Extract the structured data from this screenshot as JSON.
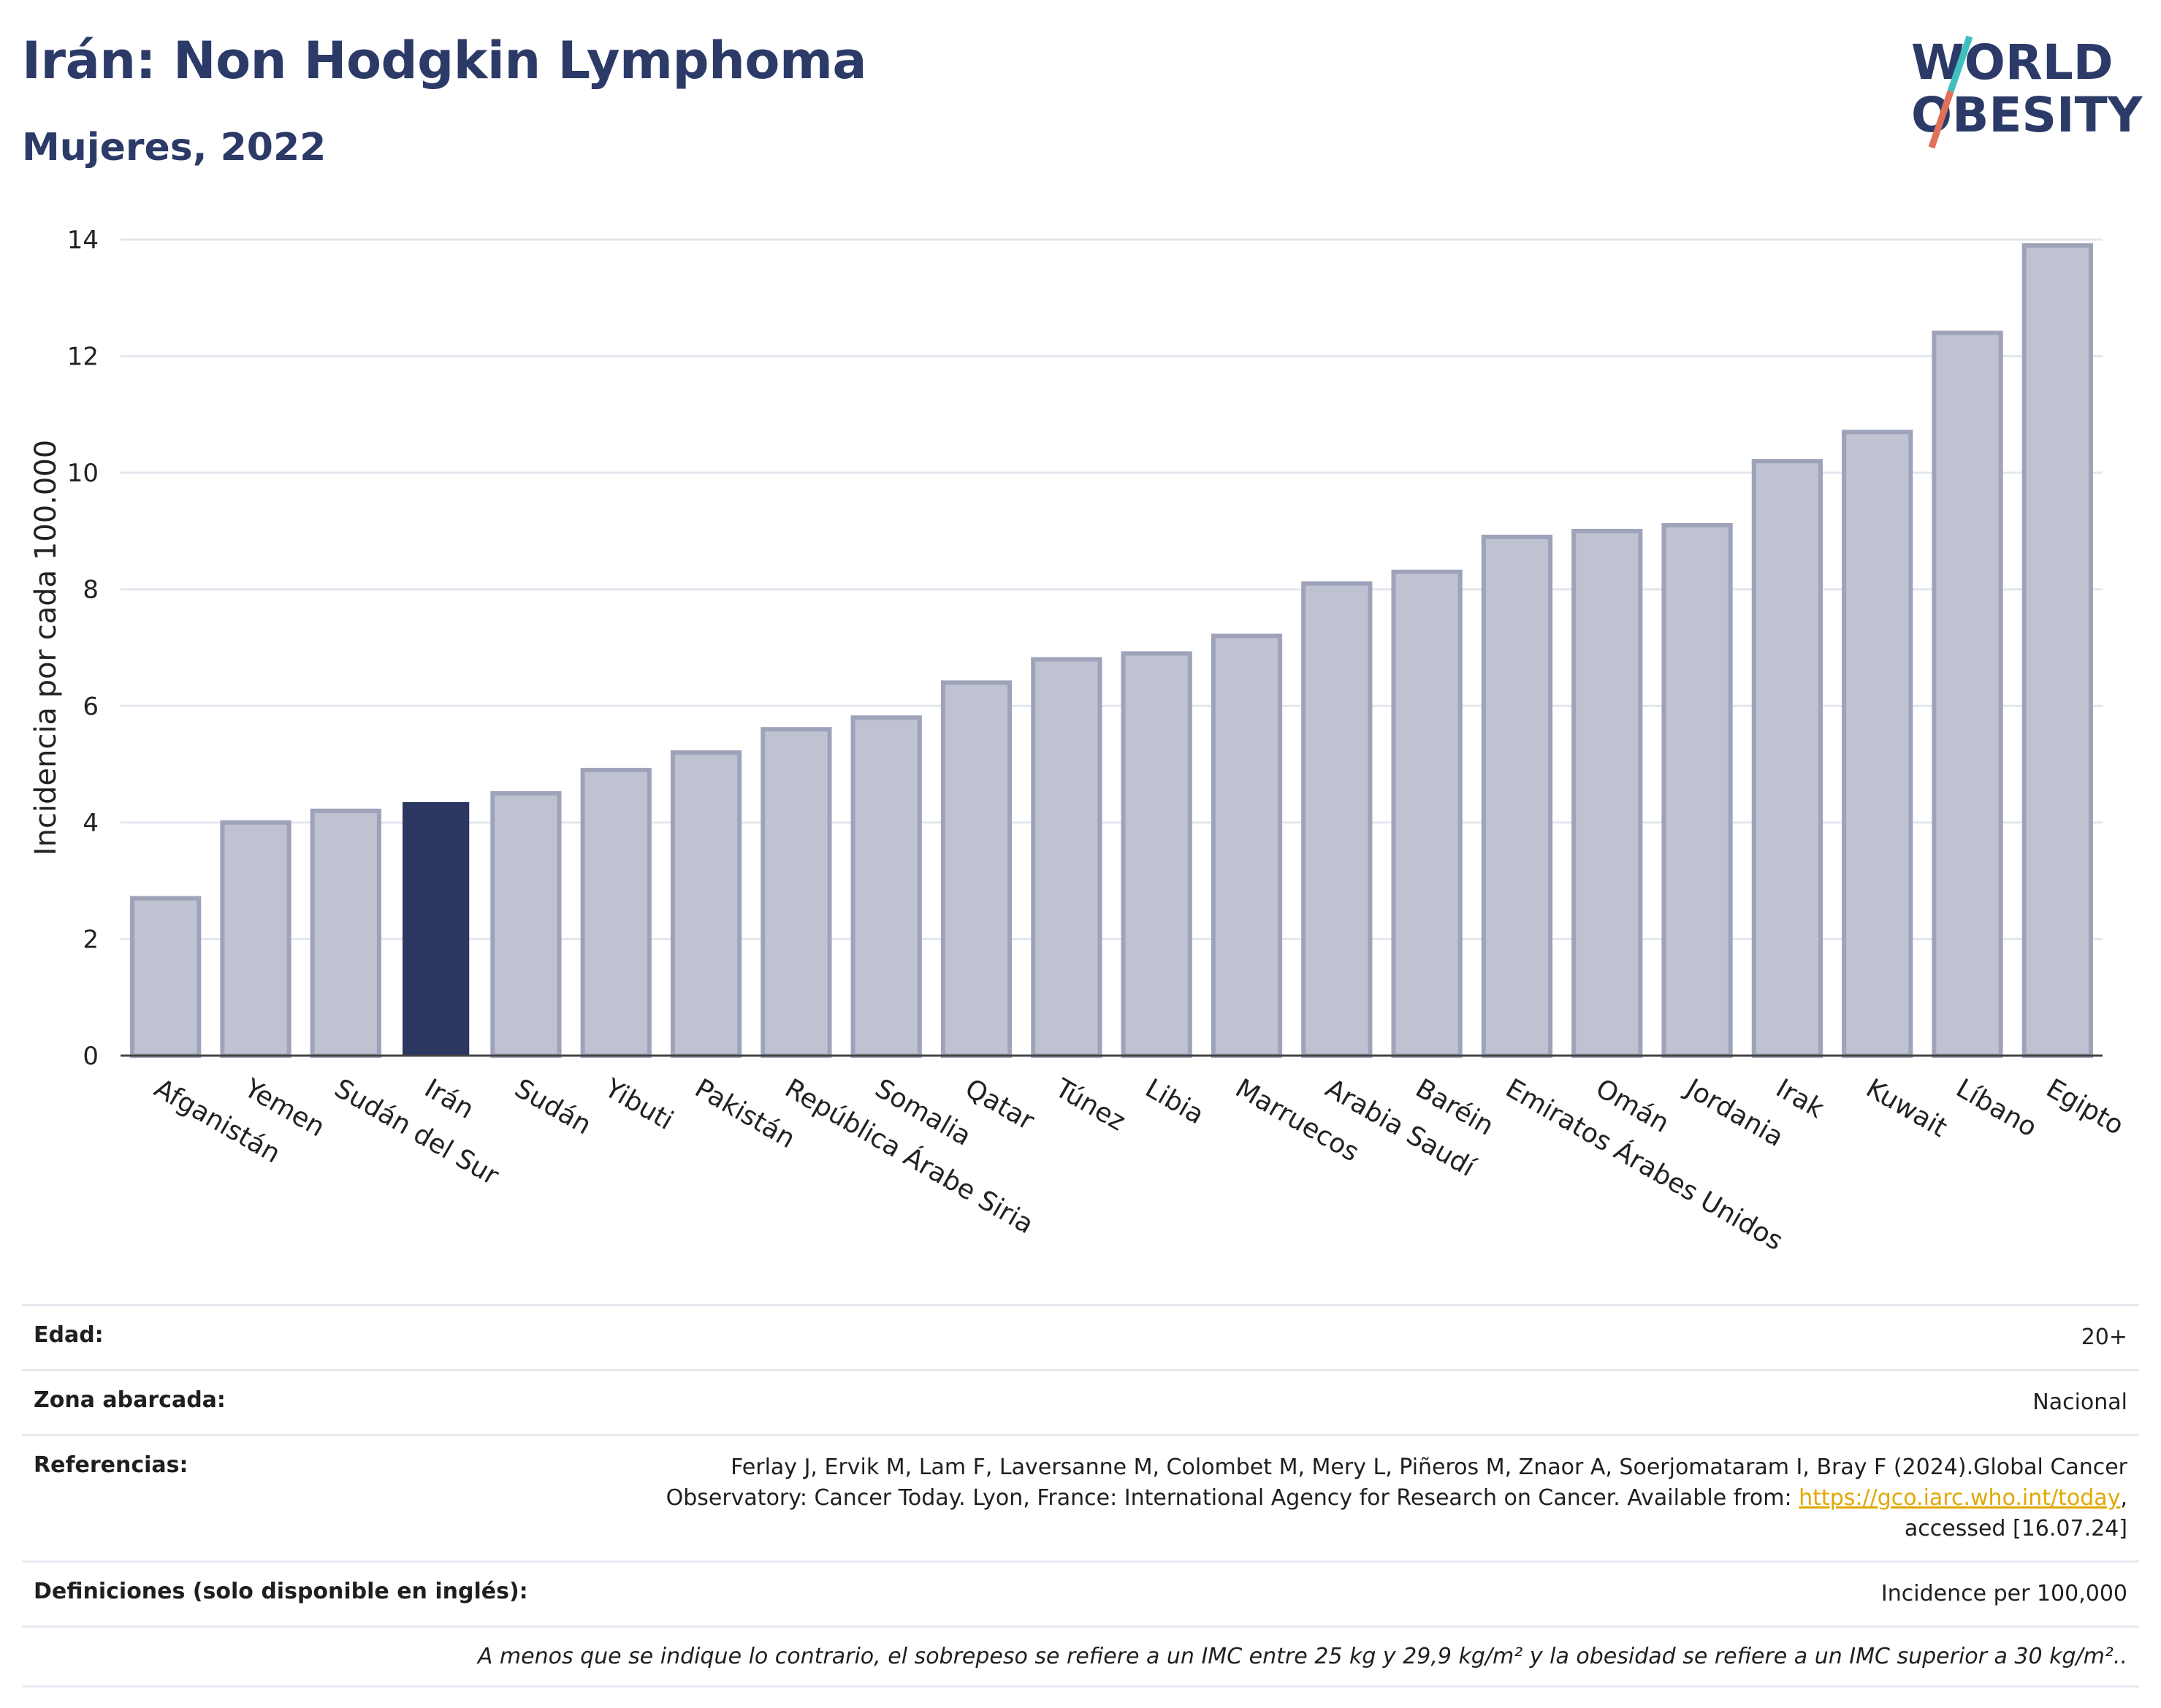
{
  "header": {
    "title": "Irán: Non Hodgkin Lymphoma",
    "subtitle": "Mujeres, 2022"
  },
  "logo": {
    "line1": "WORLD",
    "line2": "OBESITY",
    "accent_colors": [
      "#3fbfbf",
      "#e0705a"
    ]
  },
  "chart_data": {
    "type": "bar",
    "ylabel": "Incidencia por cada 100.000",
    "xlabel": "",
    "ylim": [
      0,
      14
    ],
    "yticks": [
      0,
      2,
      4,
      6,
      8,
      10,
      12,
      14
    ],
    "grid": true,
    "highlight": "Irán",
    "colors": {
      "bar": "#bfc2d0",
      "bar_border": "#9ea3ba",
      "highlight": "#2b3661"
    },
    "categories": [
      "Afganistán",
      "Yemen",
      "Sudán del Sur",
      "Irán",
      "Sudán",
      "Yibuti",
      "Pakistán",
      "República Árabe Siria",
      "Somalia",
      "Qatar",
      "Túnez",
      "Libia",
      "Marruecos",
      "Arabia Saudí",
      "Baréin",
      "Emiratos Árabes Unidos",
      "Omán",
      "Jordania",
      "Irak",
      "Kuwait",
      "Líbano",
      "Egipto"
    ],
    "values": [
      2.7,
      4.0,
      4.2,
      4.35,
      4.5,
      4.9,
      5.2,
      5.6,
      5.8,
      6.4,
      6.8,
      6.9,
      7.2,
      8.1,
      8.3,
      8.9,
      9.0,
      9.1,
      10.2,
      10.7,
      12.4,
      13.9
    ]
  },
  "info": {
    "age_label": "Edad:",
    "age_value": "20+",
    "area_label": "Zona abarcada:",
    "area_value": "Nacional",
    "refs_label": "Referencias:",
    "refs_text": "Ferlay J, Ervik M, Lam F, Laversanne M, Colombet M, Mery L, Piñeros M, Znaor A, Soerjomataram I, Bray F (2024).Global Cancer Observatory: Cancer Today. Lyon, France: International Agency for Research on Cancer. Available from:",
    "refs_link": "https://gco.iarc.who.int/today",
    "refs_after": ", accessed [16.07.24]",
    "defs_label": "Definiciones (solo disponible en inglés):",
    "defs_value": "Incidence per 100,000",
    "note": "A menos que se indique lo contrario, el sobrepeso se refiere a un IMC entre 25 kg y 29,9 kg/m² y la obesidad se refiere a un IMC superior a 30 kg/m².."
  }
}
